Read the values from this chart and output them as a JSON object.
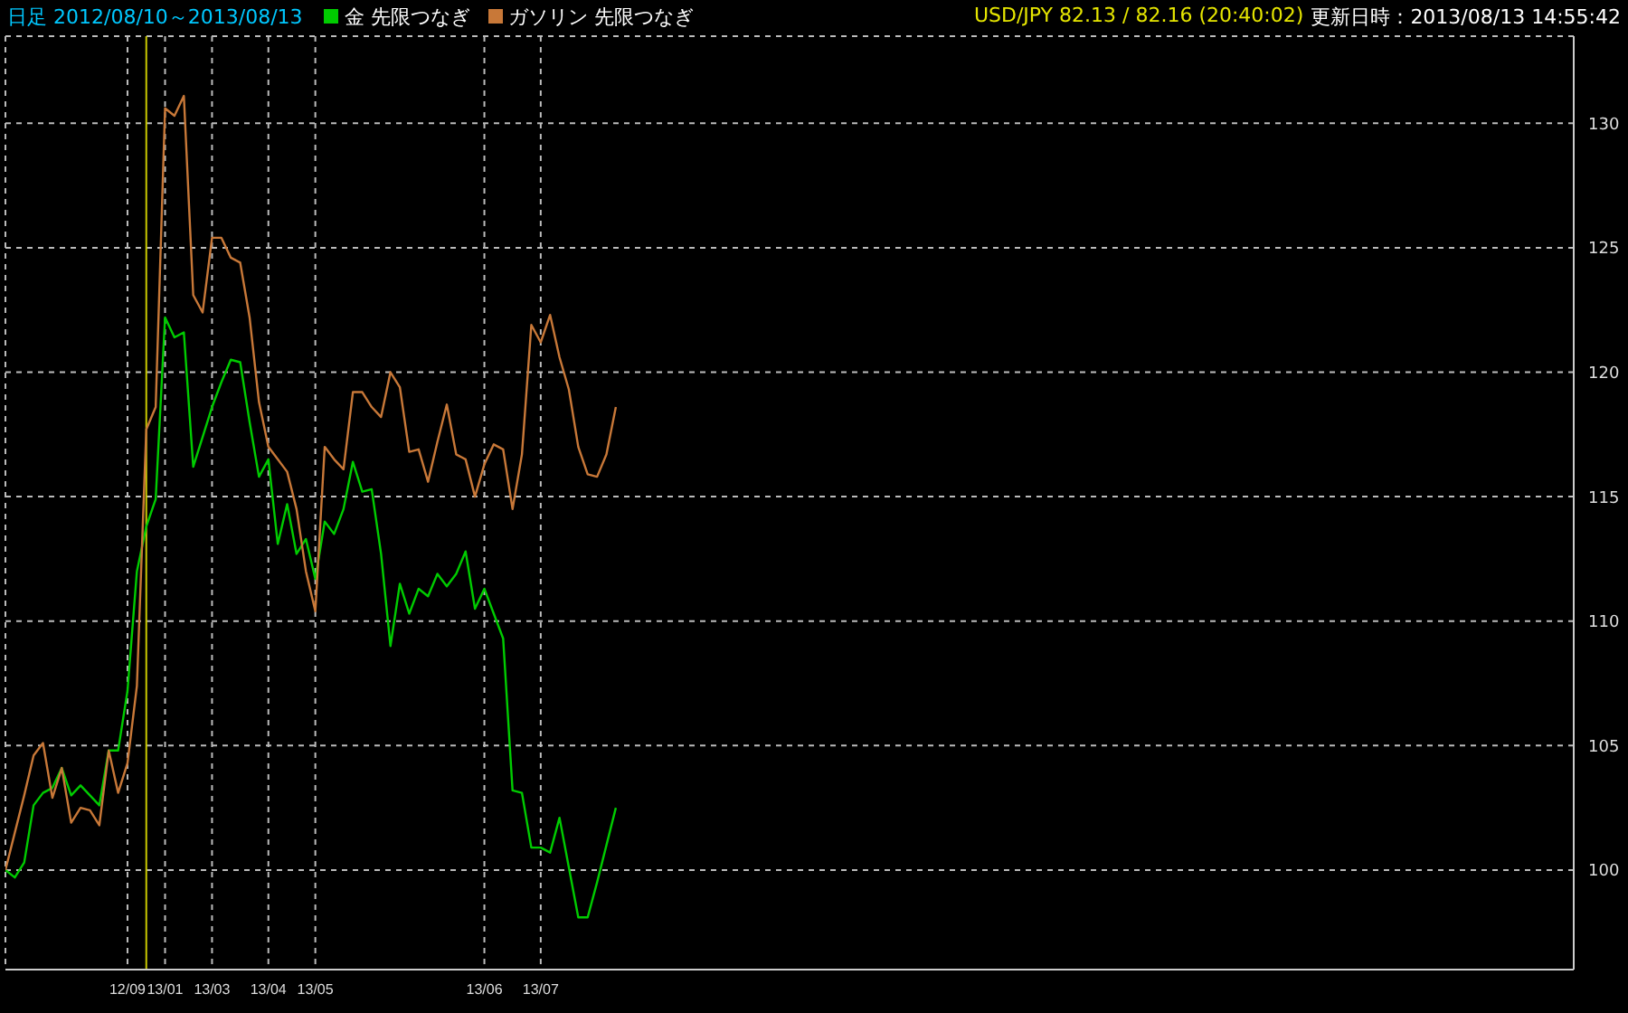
{
  "chart_data": {
    "type": "line",
    "title": "日足 2012/08/10～2013/08/13",
    "annotations": [
      "USD/JPY 82.13 / 82.16 (20:40:02)",
      "更新日時：2013/08/13 14:55:42"
    ],
    "categories": [
      null,
      null,
      null,
      null,
      null,
      null,
      null,
      null,
      null,
      null,
      null,
      null,
      null,
      "12/09",
      null,
      null,
      null,
      "13/01",
      null,
      null,
      null,
      null,
      "13/03",
      null,
      null,
      null,
      null,
      null,
      "13/04",
      null,
      null,
      null,
      null,
      "13/05",
      null,
      null,
      null,
      null,
      null,
      null,
      null,
      null,
      null,
      null,
      null,
      null,
      null,
      null,
      null,
      null,
      null,
      "13/06",
      null,
      null,
      null,
      null,
      null,
      "13/07",
      null,
      null,
      null,
      null,
      null,
      null,
      null,
      null,
      null,
      null,
      null,
      null,
      null,
      null,
      null,
      null,
      null,
      null,
      null,
      null,
      null,
      null,
      null,
      null,
      null,
      null,
      null,
      null,
      null,
      null,
      null,
      null,
      null,
      null,
      null,
      null,
      null,
      null,
      null,
      null,
      null,
      null,
      null,
      null,
      null,
      null,
      null,
      null,
      null,
      null,
      null,
      null,
      null,
      null,
      null,
      null,
      null,
      null,
      null,
      null,
      null,
      null,
      null,
      null,
      null,
      null,
      null,
      null,
      null,
      null,
      null,
      null,
      null,
      null,
      null,
      null,
      null,
      null,
      null,
      null,
      null,
      null,
      null,
      null,
      null,
      null,
      null,
      null,
      null,
      null,
      null,
      null,
      null,
      null,
      null,
      null,
      null,
      null,
      null,
      null,
      null,
      null,
      null,
      null,
      null,
      null,
      null,
      null,
      null,
      null
    ],
    "series": [
      {
        "name": "金 先限つなぎ",
        "color": "#00cc00",
        "values": [
          100.0,
          99.7,
          100.3,
          102.6,
          103.1,
          103.3,
          104.1,
          103.0,
          103.4,
          103.0,
          102.6,
          104.8,
          104.8,
          107.2,
          112.0,
          113.8,
          114.9,
          122.2,
          121.4,
          121.6,
          116.2,
          117.4,
          118.6,
          119.6,
          120.5,
          120.4,
          118.0,
          115.8,
          116.5,
          113.1,
          114.7,
          112.7,
          113.3,
          111.7,
          114.0,
          113.5,
          114.5,
          116.4,
          115.2,
          115.3,
          112.7,
          109.0,
          111.5,
          110.3,
          111.3,
          111.0,
          111.9,
          111.4,
          111.9,
          112.8,
          110.5,
          111.3,
          110.3,
          109.3,
          103.2,
          103.1,
          100.9,
          100.9,
          100.7,
          102.1,
          100.1,
          98.1,
          98.1,
          99.5,
          101.0,
          102.5,
          null,
          null,
          null,
          null,
          null,
          null,
          null,
          null,
          null,
          null,
          null,
          null,
          null,
          null,
          null,
          null,
          null,
          null,
          null,
          null,
          null,
          null,
          null,
          null,
          null,
          null,
          null,
          null,
          null,
          null,
          null,
          null,
          null,
          null,
          null,
          null,
          null,
          null,
          null,
          null,
          null,
          null,
          null,
          null,
          null,
          null,
          null,
          null,
          null,
          null,
          null,
          null,
          null,
          null,
          null,
          null,
          null,
          null,
          null,
          null,
          null,
          null,
          null,
          null,
          null,
          null,
          null,
          null,
          null,
          null,
          null,
          null,
          null,
          null,
          null,
          null,
          null,
          null,
          null,
          null,
          null,
          null,
          null,
          null,
          null,
          null,
          null,
          null,
          null,
          null,
          null,
          null,
          null,
          null,
          null,
          null,
          null,
          null,
          null,
          null,
          null,
          null
        ]
      },
      {
        "name": "ガソリン 先限つなぎ",
        "color": "#c87838",
        "values": [
          100.0,
          101.5,
          103.0,
          104.6,
          105.1,
          102.9,
          104.1,
          101.9,
          102.5,
          102.4,
          101.8,
          104.8,
          103.1,
          104.3,
          107.4,
          117.7,
          118.6,
          130.6,
          130.3,
          131.1,
          123.1,
          122.4,
          125.4,
          125.4,
          124.6,
          124.4,
          122.2,
          118.8,
          117.0,
          116.5,
          116.0,
          114.5,
          112.0,
          110.4,
          117.0,
          116.5,
          116.1,
          119.2,
          119.2,
          118.6,
          118.2,
          120.0,
          119.4,
          116.8,
          116.9,
          115.6,
          117.2,
          118.7,
          116.7,
          116.5,
          115.0,
          116.3,
          117.1,
          116.9,
          114.5,
          116.7,
          121.9,
          121.2,
          122.3,
          120.6,
          119.3,
          117.0,
          115.9,
          115.8,
          116.7,
          118.6,
          null,
          null,
          null,
          null,
          null,
          null,
          null,
          null,
          null,
          null,
          null,
          null,
          null,
          null,
          null,
          null,
          null,
          null,
          null,
          null,
          null,
          null,
          null,
          null,
          null,
          null,
          null,
          null,
          null,
          null,
          null,
          null,
          null,
          null,
          null,
          null,
          null,
          null,
          null,
          null,
          null,
          null,
          null,
          null,
          null,
          null,
          null,
          null,
          null,
          null,
          null,
          null,
          null,
          null,
          null,
          null,
          null,
          null,
          null,
          null,
          null,
          null,
          null,
          null,
          null,
          null,
          null,
          null,
          null,
          null,
          null,
          null,
          null,
          null,
          null,
          null,
          null,
          null,
          null,
          null,
          null,
          null,
          null,
          null,
          null,
          null,
          null,
          null,
          null,
          null,
          null,
          null,
          null,
          null,
          null,
          null,
          null,
          null,
          null,
          null,
          null,
          null
        ]
      }
    ],
    "ylim": [
      96,
      133.5
    ],
    "yticks": [
      100,
      105,
      110,
      115,
      120,
      125,
      130
    ],
    "grid": true,
    "legend": "top left",
    "marker": "none",
    "line_style": "solid"
  }
}
